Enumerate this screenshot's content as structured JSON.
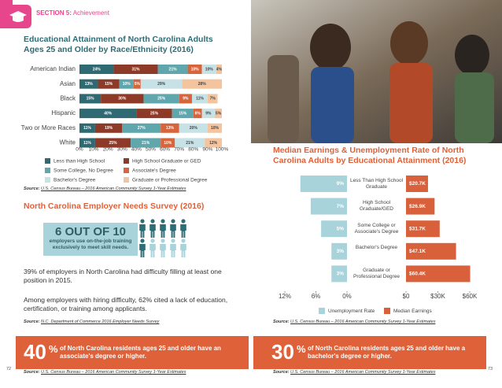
{
  "header": {
    "section": "SECTION 5:",
    "subsection": "Achievement"
  },
  "chart_data": [
    {
      "type": "stacked-bar-horizontal",
      "title": "Educational Attainment of North Carolina Adults Ages 25 and Older by Race/Ethnicity (2016)",
      "categories": [
        "American Indian",
        "Asian",
        "Black",
        "Hispanic",
        "Two or More Races",
        "White"
      ],
      "series": [
        {
          "name": "Less than High School",
          "color": "#2f6a73",
          "values": [
            24,
            13,
            15,
            40,
            11,
            11
          ],
          "value_labels": [
            "24%",
            "13%",
            "15%",
            "40%",
            "11%",
            "11%"
          ]
        },
        {
          "name": "High School Graduate or GED",
          "color": "#8e3a28",
          "values": [
            31,
            15,
            30,
            25,
            19,
            25
          ],
          "value_labels": [
            "31%",
            "15%",
            "30%",
            "25%",
            "19%",
            "25%"
          ]
        },
        {
          "name": "Some College, No Degree",
          "color": "#5fa6ad",
          "values": [
            21,
            10,
            25,
            15,
            27,
            21
          ],
          "value_labels": [
            "21%",
            "10%",
            "25%",
            "15%",
            "27%",
            "21%"
          ]
        },
        {
          "name": "Associate's Degree",
          "color": "#d8643c",
          "values": [
            10,
            5,
            9,
            6,
            13,
            10
          ],
          "value_labels": [
            "10%",
            "5%",
            "9%",
            "6%",
            "13%",
            "10%"
          ]
        },
        {
          "name": "Bachelor's Degree",
          "color": "#c7e2e6",
          "values": [
            10,
            29,
            11,
            9,
            20,
            21
          ],
          "value_labels": [
            "10%",
            "29%",
            "11%",
            "9%",
            "20%",
            "21%"
          ]
        },
        {
          "name": "Graduate or Professional Degree",
          "color": "#f3c49d",
          "values": [
            4,
            28,
            7,
            5,
            10,
            12
          ],
          "value_labels": [
            "4%",
            "28%",
            "7%",
            "5%",
            "10%",
            "12%"
          ]
        }
      ],
      "xlim": [
        0,
        100
      ],
      "xticks": [
        {
          "value": 0,
          "label": "0%"
        },
        {
          "value": 10,
          "label": "10%"
        },
        {
          "value": 20,
          "label": "20%"
        },
        {
          "value": 30,
          "label": "30%"
        },
        {
          "value": 40,
          "label": "40%"
        },
        {
          "value": 50,
          "label": "50%"
        },
        {
          "value": 60,
          "label": "60%"
        },
        {
          "value": 70,
          "label": "70%"
        },
        {
          "value": 80,
          "label": "80%"
        },
        {
          "value": 90,
          "label": "90%"
        },
        {
          "value": 100,
          "label": "100%"
        }
      ],
      "source_label": "Source:",
      "source": "U.S. Census Bureau – 2016 American Community Survey 1-Year Estimates"
    },
    {
      "type": "butterfly-bar",
      "title": "Median Earnings & Unemployment Rate of North Carolina Adults by Educational Attainment (2016)",
      "categories": [
        "Less Than High School Graduate",
        "High School Graduate/GED",
        "Some College or Associate's Degree",
        "Bachelor's Degree",
        "Graduate or Professional Degree"
      ],
      "series": [
        {
          "name": "Unemployment Rate",
          "color": "#a9d3db",
          "axis": "x",
          "values": [
            9,
            7,
            5,
            3,
            3
          ],
          "value_labels": [
            "9%",
            "7%",
            "5%",
            "3%",
            "3%"
          ]
        },
        {
          "name": "Median Earnings",
          "color": "#d8603a",
          "axis": "x2",
          "values": [
            20700,
            26900,
            31700,
            47100,
            60400
          ],
          "value_labels": [
            "$20.7K",
            "$26.9K",
            "$31.7K",
            "$47.1K",
            "$60.4K"
          ]
        }
      ],
      "xlim": [
        12,
        0
      ],
      "xticks": [
        {
          "value": 12,
          "label": "12%"
        },
        {
          "value": 6,
          "label": "6%"
        },
        {
          "value": 0,
          "label": "0%"
        }
      ],
      "x2lim": [
        0,
        60000
      ],
      "x2ticks": [
        {
          "value": 0,
          "label": "$0"
        },
        {
          "value": 30000,
          "label": "$30K"
        },
        {
          "value": 60000,
          "label": "$60K"
        }
      ],
      "source_label": "Source:",
      "source": "U.S. Census Bureau – 2016 American Community Survey 1-Year Estimates"
    }
  ],
  "employer_survey": {
    "title": "North Carolina Employer Needs Survey (2016)",
    "stat": "6 OUT OF 10",
    "stat_text": "employers use on-the-job training exclusively to meet skill needs.",
    "paragraphs": [
      "39% of employers in North Carolina had difficulty filling at least one position in 2015.",
      "Among employers with hiring difficulty, 62% cited a lack of education, certification, or training among applicants."
    ],
    "source_label": "Source:",
    "source": "N.C. Department of Commerce 2016 Employer Needs Survey"
  },
  "callouts": [
    {
      "number": "40",
      "unit": "%",
      "text": "of North Carolina residents ages 25 and older have an associate's degree or higher.",
      "source_label": "Source:",
      "source": "U.S. Census Bureau – 2016 American Community Survey 1-Year Estimates"
    },
    {
      "number": "30",
      "unit": "%",
      "text": "of North Carolina residents ages 25 and older have a bachelor's degree or higher.",
      "source_label": "Source:",
      "source": "U.S. Census Bureau – 2016 American Community Survey 1-Year Estimates"
    }
  ],
  "page_numbers": [
    "72",
    "73"
  ]
}
